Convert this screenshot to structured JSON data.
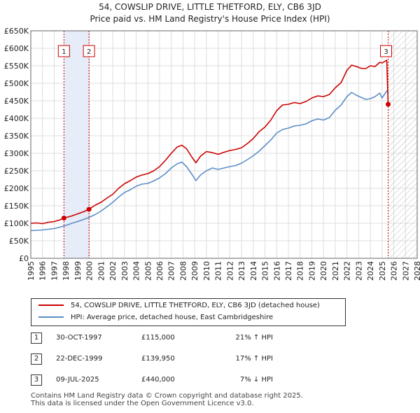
{
  "header": {
    "title_line1": "54, COWSLIP DRIVE, LITTLE THETFORD, ELY, CB6 3JD",
    "title_line2": "Price paid vs. HM Land Registry's House Price Index (HPI)"
  },
  "chart_data": {
    "type": "line",
    "title": "54, COWSLIP DRIVE, LITTLE THETFORD, ELY, CB6 3JD — Price paid vs. HM Land Registry's House Price Index (HPI)",
    "xlabel": "",
    "ylabel": "",
    "xlim": [
      1995,
      2028
    ],
    "ylim": [
      0,
      650000
    ],
    "x_ticks": [
      1995,
      1996,
      1997,
      1998,
      1999,
      2000,
      2001,
      2002,
      2003,
      2004,
      2005,
      2006,
      2007,
      2008,
      2009,
      2010,
      2011,
      2012,
      2013,
      2014,
      2015,
      2016,
      2017,
      2018,
      2019,
      2020,
      2021,
      2022,
      2023,
      2024,
      2025,
      2026,
      2027,
      2028
    ],
    "y_ticks": [
      {
        "value": 0,
        "label": "£0"
      },
      {
        "value": 50000,
        "label": "£50K"
      },
      {
        "value": 100000,
        "label": "£100K"
      },
      {
        "value": 150000,
        "label": "£150K"
      },
      {
        "value": 200000,
        "label": "£200K"
      },
      {
        "value": 250000,
        "label": "£250K"
      },
      {
        "value": 300000,
        "label": "£300K"
      },
      {
        "value": 350000,
        "label": "£350K"
      },
      {
        "value": 400000,
        "label": "£400K"
      },
      {
        "value": 450000,
        "label": "£450K"
      },
      {
        "value": 500000,
        "label": "£500K"
      },
      {
        "value": 550000,
        "label": "£550K"
      },
      {
        "value": 600000,
        "label": "£600K"
      },
      {
        "value": 650000,
        "label": "£650K"
      }
    ],
    "grid": true,
    "shaded_period": {
      "from": 1997.83,
      "to": 1999.97
    },
    "future_hatch_from": 2025.52,
    "series": [
      {
        "name": "54, COWSLIP DRIVE, LITTLE THETFORD, ELY, CB6 3JD (detached house)",
        "color": "#cc0000",
        "x": [
          1995,
          1995.5,
          1996,
          1996.5,
          1997,
          1997.5,
          1997.83,
          1998.5,
          1999,
          1999.5,
          1999.97,
          2000.5,
          2001,
          2001.5,
          2002,
          2002.5,
          2003,
          2003.5,
          2004,
          2004.5,
          2005,
          2005.5,
          2006,
          2006.5,
          2007,
          2007.5,
          2007.9,
          2008.3,
          2008.8,
          2009.1,
          2009.5,
          2010,
          2010.5,
          2011,
          2011.5,
          2012,
          2012.5,
          2013,
          2013.5,
          2014,
          2014.5,
          2015,
          2015.5,
          2016,
          2016.5,
          2017,
          2017.5,
          2018,
          2018.5,
          2019,
          2019.5,
          2020,
          2020.5,
          2021,
          2021.5,
          2022,
          2022.4,
          2022.8,
          2023.2,
          2023.6,
          2024,
          2024.4,
          2024.8,
          2025.0,
          2025.4,
          2025.52
        ],
        "y": [
          100000,
          101000,
          99000,
          103000,
          105000,
          110000,
          115000,
          121000,
          127000,
          133000,
          139950,
          152000,
          160000,
          172000,
          183000,
          200000,
          213000,
          222000,
          232000,
          238000,
          242000,
          250000,
          262000,
          280000,
          300000,
          318000,
          323000,
          313000,
          287000,
          273000,
          292000,
          305000,
          302000,
          297000,
          303000,
          308000,
          311000,
          316000,
          328000,
          342000,
          362000,
          375000,
          395000,
          422000,
          438000,
          440000,
          445000,
          442000,
          448000,
          458000,
          464000,
          462000,
          468000,
          487000,
          502000,
          537000,
          552000,
          548000,
          543000,
          542000,
          550000,
          548000,
          560000,
          558000,
          566000,
          440000
        ]
      },
      {
        "name": "HPI: Average price, detached house, East Cambridgeshire",
        "color": "#5b8fc7",
        "x": [
          1995,
          1995.5,
          1996,
          1996.5,
          1997,
          1997.5,
          1998,
          1998.5,
          1999,
          1999.5,
          2000,
          2000.5,
          2001,
          2001.5,
          2002,
          2002.5,
          2003,
          2003.5,
          2004,
          2004.5,
          2005,
          2005.5,
          2006,
          2006.5,
          2007,
          2007.5,
          2007.9,
          2008.3,
          2008.8,
          2009.1,
          2009.5,
          2010,
          2010.5,
          2011,
          2011.5,
          2012,
          2012.5,
          2013,
          2013.5,
          2014,
          2014.5,
          2015,
          2015.5,
          2016,
          2016.5,
          2017,
          2017.5,
          2018,
          2018.5,
          2019,
          2019.5,
          2020,
          2020.5,
          2021,
          2021.5,
          2022,
          2022.4,
          2022.8,
          2023.2,
          2023.6,
          2024,
          2024.4,
          2024.8,
          2025.0,
          2025.4,
          2025.52
        ],
        "y": [
          79000,
          80000,
          81000,
          83000,
          85000,
          89000,
          94000,
          100000,
          105000,
          111000,
          117000,
          125000,
          135000,
          147000,
          160000,
          175000,
          188000,
          196000,
          206000,
          212000,
          214000,
          221000,
          230000,
          242000,
          258000,
          270000,
          275000,
          262000,
          238000,
          222000,
          238000,
          250000,
          258000,
          254000,
          258000,
          262000,
          265000,
          272000,
          282000,
          293000,
          306000,
          322000,
          338000,
          358000,
          368000,
          372000,
          378000,
          380000,
          384000,
          393000,
          398000,
          395000,
          402000,
          423000,
          438000,
          462000,
          474000,
          466000,
          460000,
          454000,
          456000,
          462000,
          472000,
          458000,
          478000,
          476000
        ]
      }
    ],
    "sales": [
      {
        "n": "1",
        "year": 1997.83,
        "price": 115000,
        "date": "30-OCT-1997",
        "price_label": "£115,000",
        "hpi": "21% ↑ HPI"
      },
      {
        "n": "2",
        "year": 1999.97,
        "price": 139950,
        "date": "22-DEC-1999",
        "price_label": "£139,950",
        "hpi": "17% ↑ HPI"
      },
      {
        "n": "3",
        "year": 2025.52,
        "price": 440000,
        "date": "09-JUL-2025",
        "price_label": "£440,000",
        "hpi": "7% ↓ HPI"
      }
    ]
  },
  "legend": {
    "property_label": "54, COWSLIP DRIVE, LITTLE THETFORD, ELY, CB6 3JD (detached house)",
    "hpi_label": "HPI: Average price, detached house, East Cambridgeshire"
  },
  "footer": {
    "line1": "Contains HM Land Registry data © Crown copyright and database right 2025.",
    "line2": "This data is licensed under the Open Government Licence v3.0."
  }
}
